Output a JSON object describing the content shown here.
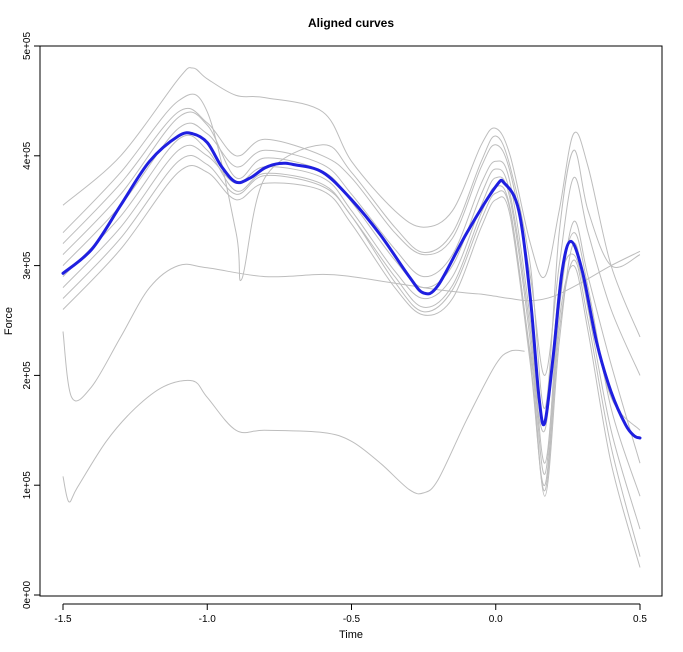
{
  "chart_data": {
    "type": "line",
    "title": "Aligned curves",
    "xlabel": "Time",
    "ylabel": "Force",
    "xlim": [
      -1.5,
      0.5
    ],
    "ylim": [
      0,
      500000
    ],
    "x_ticks": [
      -1.5,
      -1.0,
      -0.5,
      0.0,
      0.5
    ],
    "x_tick_labels": [
      "-1.5",
      "-1.0",
      "-0.5",
      "0.0",
      "0.5"
    ],
    "y_ticks": [
      0,
      100000,
      200000,
      300000,
      400000,
      500000
    ],
    "y_tick_labels": [
      "0e+00",
      "1e+05",
      "2e+05",
      "3e+05",
      "4e+05",
      "5e+05"
    ],
    "grid": false,
    "series": [
      {
        "role": "mean",
        "color": "#1f1fe0",
        "x": [
          -1.5,
          -1.4,
          -1.3,
          -1.2,
          -1.1,
          -1.05,
          -1.0,
          -0.95,
          -0.9,
          -0.85,
          -0.8,
          -0.75,
          -0.7,
          -0.6,
          -0.5,
          -0.4,
          -0.3,
          -0.25,
          -0.2,
          -0.1,
          0.0,
          0.03,
          0.08,
          0.12,
          0.15,
          0.17,
          0.2,
          0.23,
          0.26,
          0.3,
          0.35,
          0.4,
          0.45,
          0.48,
          0.5
        ],
        "y": [
          293000,
          315000,
          355000,
          395000,
          418000,
          420000,
          412000,
          390000,
          376000,
          380000,
          389000,
          393000,
          392000,
          385000,
          360000,
          328000,
          290000,
          275000,
          282000,
          330000,
          372000,
          375000,
          350000,
          270000,
          180000,
          157000,
          220000,
          295000,
          322000,
          295000,
          230000,
          185000,
          155000,
          145000,
          143000
        ]
      },
      {
        "role": "sample",
        "color": "#bdbdbd",
        "x": [
          -1.5,
          -1.3,
          -1.1,
          -1.05,
          -1.0,
          -0.9,
          -0.8,
          -0.6,
          -0.5,
          -0.35,
          -0.25,
          -0.15,
          -0.05,
          0.0,
          0.05,
          0.12,
          0.17,
          0.22,
          0.27,
          0.32,
          0.4,
          0.5
        ],
        "y": [
          355000,
          400000,
          470000,
          480000,
          470000,
          455000,
          453000,
          440000,
          395000,
          350000,
          335000,
          350000,
          410000,
          425000,
          400000,
          320000,
          290000,
          350000,
          420000,
          390000,
          300000,
          235000
        ]
      },
      {
        "role": "sample",
        "color": "#bdbdbd",
        "x": [
          -1.5,
          -1.3,
          -1.1,
          -1.0,
          -0.9,
          -0.8,
          -0.6,
          -0.5,
          -0.35,
          -0.25,
          -0.15,
          -0.05,
          0.0,
          0.05,
          0.12,
          0.17,
          0.22,
          0.27,
          0.32,
          0.4,
          0.5
        ],
        "y": [
          320000,
          375000,
          440000,
          430000,
          400000,
          415000,
          400000,
          380000,
          330000,
          310000,
          325000,
          390000,
          410000,
          385000,
          290000,
          200000,
          300000,
          380000,
          330000,
          260000,
          200000
        ]
      },
      {
        "role": "sample",
        "color": "#bdbdbd",
        "x": [
          -1.5,
          -1.3,
          -1.1,
          -1.0,
          -0.9,
          -0.8,
          -0.6,
          -0.5,
          -0.35,
          -0.25,
          -0.15,
          -0.05,
          0.0,
          0.05,
          0.12,
          0.17,
          0.22,
          0.27,
          0.32,
          0.4,
          0.5
        ],
        "y": [
          300000,
          355000,
          425000,
          420000,
          390000,
          405000,
          392000,
          365000,
          315000,
          290000,
          310000,
          375000,
          395000,
          375000,
          250000,
          120000,
          260000,
          340000,
          290000,
          210000,
          120000
        ]
      },
      {
        "role": "sample",
        "color": "#bdbdbd",
        "x": [
          -1.5,
          -1.3,
          -1.1,
          -1.0,
          -0.9,
          -0.8,
          -0.6,
          -0.5,
          -0.35,
          -0.25,
          -0.15,
          -0.05,
          0.0,
          0.05,
          0.12,
          0.17,
          0.22,
          0.27,
          0.32,
          0.4,
          0.5
        ],
        "y": [
          280000,
          335000,
          405000,
          400000,
          375000,
          390000,
          380000,
          350000,
          295000,
          270000,
          290000,
          355000,
          380000,
          360000,
          230000,
          90000,
          230000,
          320000,
          260000,
          150000,
          60000
        ]
      },
      {
        "role": "sample",
        "color": "#bdbdbd",
        "x": [
          -1.5,
          -1.3,
          -1.1,
          -1.0,
          -0.9,
          -0.8,
          -0.6,
          -0.5,
          -0.35,
          -0.25,
          -0.15,
          -0.05,
          0.0,
          0.05,
          0.12,
          0.17,
          0.22,
          0.27,
          0.32,
          0.4,
          0.5
        ],
        "y": [
          260000,
          315000,
          385000,
          385000,
          360000,
          375000,
          368000,
          338000,
          280000,
          255000,
          270000,
          335000,
          360000,
          345000,
          210000,
          100000,
          250000,
          300000,
          240000,
          120000,
          25000
        ]
      },
      {
        "role": "sample",
        "color": "#bdbdbd",
        "x": [
          -1.5,
          -1.3,
          -1.1,
          -1.0,
          -0.9,
          -0.8,
          -0.6,
          -0.5,
          -0.35,
          -0.25,
          -0.15,
          -0.05,
          0.0,
          0.05,
          0.12,
          0.17,
          0.22,
          0.27,
          0.32,
          0.4,
          0.5
        ],
        "y": [
          310000,
          365000,
          435000,
          428000,
          380000,
          398000,
          386000,
          358000,
          305000,
          280000,
          300000,
          365000,
          388000,
          365000,
          240000,
          110000,
          270000,
          330000,
          280000,
          170000,
          90000
        ]
      },
      {
        "role": "sample",
        "color": "#bdbdbd",
        "x": [
          -1.5,
          -1.3,
          -1.1,
          -1.0,
          -0.9,
          -0.8,
          -0.6,
          -0.5,
          -0.35,
          -0.25,
          -0.15,
          -0.05,
          0.0,
          0.05,
          0.12,
          0.17,
          0.22,
          0.27,
          0.32,
          0.4,
          0.5
        ],
        "y": [
          290000,
          345000,
          415000,
          405000,
          368000,
          384000,
          374000,
          345000,
          290000,
          262000,
          282000,
          348000,
          372000,
          352000,
          220000,
          150000,
          280000,
          310000,
          265000,
          180000,
          150000
        ]
      },
      {
        "role": "sample",
        "color": "#bdbdbd",
        "x": [
          -1.5,
          -1.3,
          -1.1,
          -1.0,
          -0.9,
          -0.88,
          -0.8,
          -0.6,
          -0.5,
          -0.35,
          -0.25,
          -0.15,
          -0.05,
          0.0,
          0.05,
          0.12,
          0.17,
          0.22,
          0.27,
          0.32,
          0.4,
          0.5
        ],
        "y": [
          330000,
          385000,
          450000,
          440000,
          330000,
          288000,
          380000,
          410000,
          385000,
          335000,
          312000,
          330000,
          395000,
          418000,
          390000,
          300000,
          170000,
          330000,
          405000,
          350000,
          300000,
          310000
        ]
      },
      {
        "role": "sample",
        "color": "#bdbdbd",
        "x": [
          -1.5,
          -1.3,
          -1.1,
          -1.0,
          -0.9,
          -0.8,
          -0.6,
          -0.5,
          -0.35,
          -0.25,
          -0.15,
          -0.05,
          0.0,
          0.05,
          0.12,
          0.17,
          0.22,
          0.27,
          0.32,
          0.4,
          0.5
        ],
        "y": [
          270000,
          325000,
          395000,
          392000,
          365000,
          382000,
          372000,
          345000,
          285000,
          258000,
          278000,
          342000,
          366000,
          350000,
          215000,
          95000,
          240000,
          305000,
          250000,
          135000,
          35000
        ]
      },
      {
        "role": "sample",
        "color": "#bdbdbd",
        "x": [
          -1.5,
          -1.47,
          -1.4,
          -1.3,
          -1.2,
          -1.1,
          -1.0,
          -0.8,
          -0.6,
          -0.5,
          -0.4,
          -0.3,
          -0.2,
          -0.1,
          -0.05,
          0.0,
          0.05,
          0.12,
          0.2,
          0.3,
          0.4,
          0.5
        ],
        "y": [
          240000,
          180000,
          190000,
          235000,
          280000,
          300000,
          298000,
          290000,
          292000,
          290000,
          286000,
          282000,
          278000,
          275000,
          274000,
          272000,
          270000,
          268000,
          272000,
          285000,
          300000,
          313000
        ]
      },
      {
        "role": "sample",
        "color": "#bdbdbd",
        "x": [
          -1.5,
          -1.48,
          -1.45,
          -1.35,
          -1.25,
          -1.15,
          -1.05,
          -1.0,
          -0.9,
          -0.8,
          -0.6,
          -0.5,
          -0.4,
          -0.3,
          -0.25,
          -0.2,
          -0.1,
          0.0,
          0.05,
          0.1
        ],
        "y": [
          108000,
          85000,
          98000,
          140000,
          170000,
          190000,
          195000,
          180000,
          150000,
          150000,
          148000,
          140000,
          120000,
          96000,
          93000,
          105000,
          160000,
          210000,
          222000,
          222000
        ]
      }
    ]
  }
}
